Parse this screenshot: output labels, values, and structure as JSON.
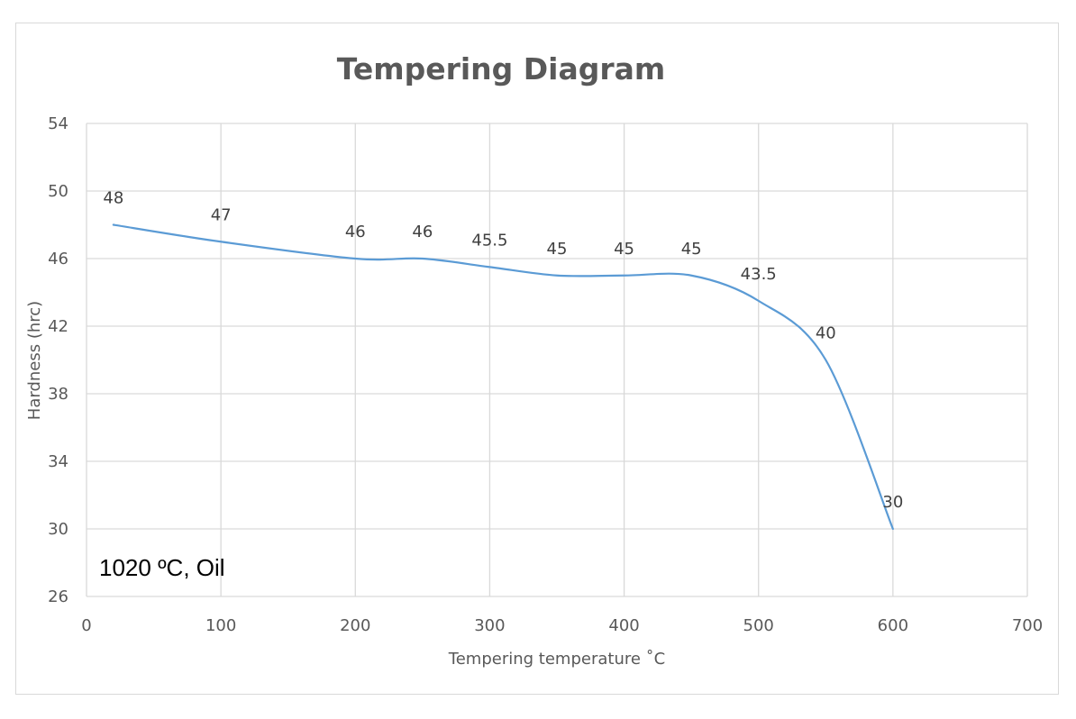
{
  "chart_data": {
    "type": "line",
    "title": "Tempering Diagram",
    "xlabel": "Tempering temperature ˚C",
    "ylabel": "Hardness (hrc)",
    "xlim": [
      0,
      700
    ],
    "ylim": [
      26,
      54
    ],
    "xticks": [
      0,
      100,
      200,
      300,
      400,
      500,
      600,
      700
    ],
    "yticks": [
      26,
      30,
      34,
      38,
      42,
      46,
      50,
      54
    ],
    "grid": true,
    "smooth": true,
    "series": [
      {
        "name": "Hardness",
        "color": "#5b9bd5",
        "x": [
          20,
          100,
          200,
          250,
          300,
          350,
          400,
          450,
          500,
          550,
          600
        ],
        "y": [
          48,
          47,
          46,
          46,
          45.5,
          45,
          45,
          45,
          43.5,
          40,
          30
        ],
        "labels": [
          "48",
          "47",
          "46",
          "46",
          "45.5",
          "45",
          "45",
          "45",
          "43.5",
          "40",
          "30"
        ]
      }
    ],
    "annotation": "1020 ºC, Oil"
  }
}
